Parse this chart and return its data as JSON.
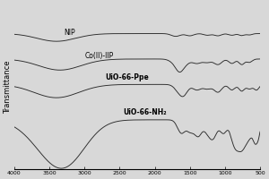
{
  "title": "",
  "xlabel": "",
  "ylabel": "Transmittance",
  "x_ticks": [
    4000,
    3500,
    3000,
    2500,
    2000,
    1500,
    1000,
    500
  ],
  "x_min": 500,
  "x_max": 4000,
  "background_color": "#d8d8d8",
  "line_color": "#2a2a2a",
  "labels": [
    "NIP",
    "Co(II)-IIP",
    "UiO-66-Ppe",
    "UiO-66-NH₂"
  ],
  "offsets": [
    0.78,
    0.55,
    0.32,
    0.0
  ],
  "label_fontweights": [
    "normal",
    "normal",
    "bold",
    "bold"
  ]
}
